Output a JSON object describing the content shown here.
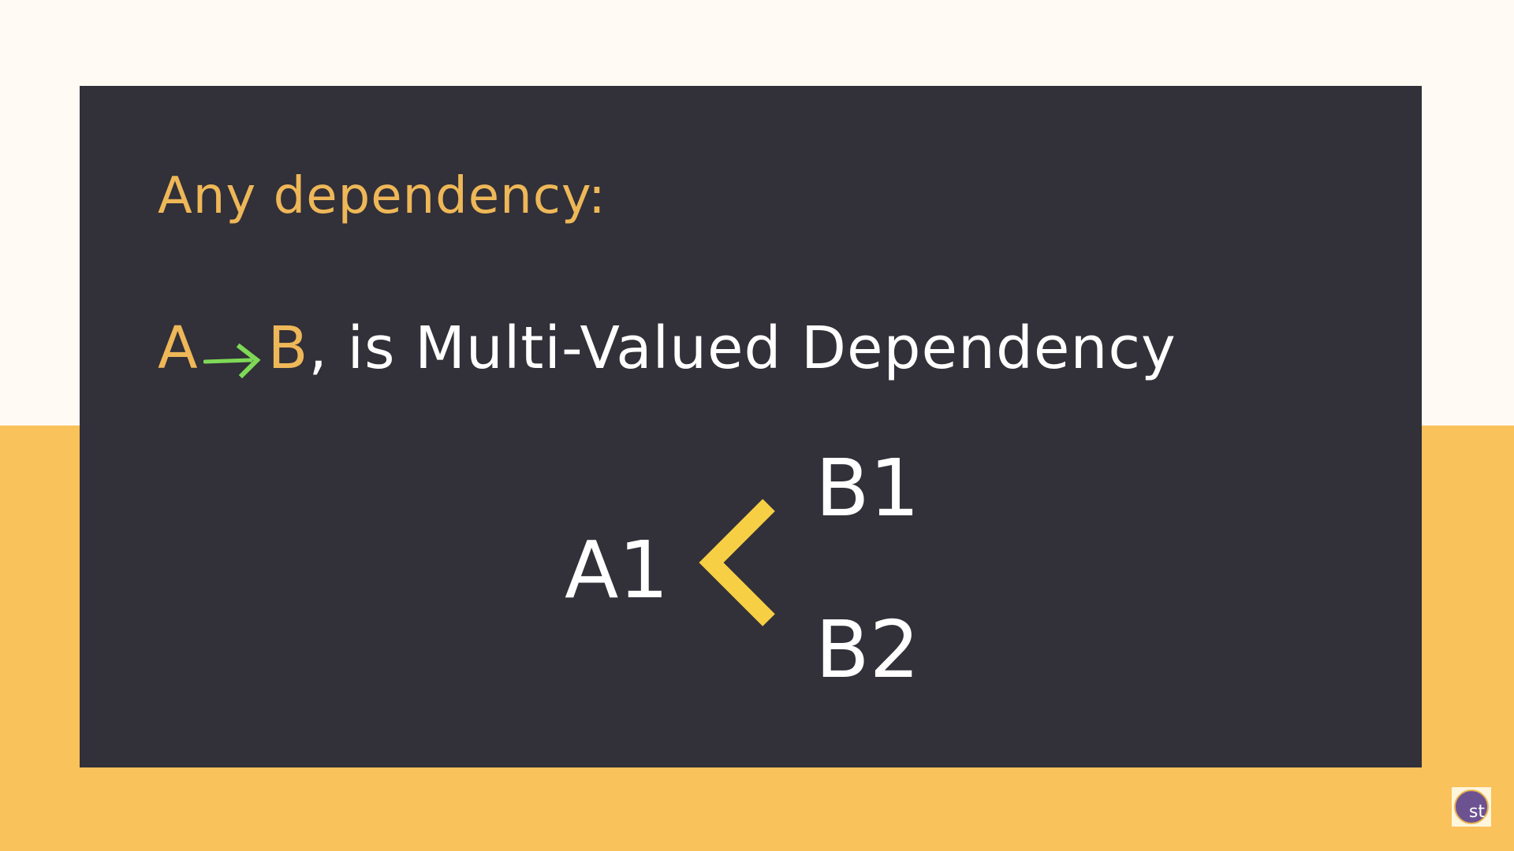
{
  "slide": {
    "heading": "Any dependency:",
    "statement": {
      "lhs": "A",
      "rhs": "B",
      "rest": ", is Multi-Valued Dependency"
    },
    "diagram": {
      "source": "A1",
      "targets": [
        "B1",
        "B2"
      ]
    }
  },
  "logo": {
    "text": "st"
  },
  "colors": {
    "background_top": "#fffbf4",
    "background_bottom": "#f9c25b",
    "card": "#323038",
    "accent_text": "#eeb758",
    "arrow": "#7ed957",
    "chevron": "#f7cf45",
    "logo_circle": "#6d5291"
  },
  "icons": {
    "arrow": "right-arrow-icon",
    "branch": "chevron-left-icon",
    "logo": "logo-icon"
  }
}
